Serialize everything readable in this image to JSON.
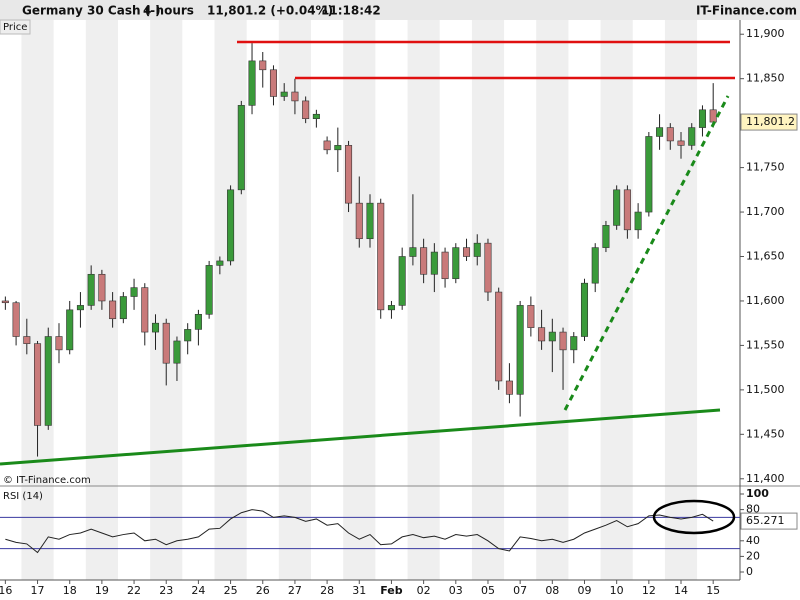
{
  "header": {
    "instrument": "Germany 30 Cash (-)",
    "interval": "4 hours",
    "quote": "11,801.2 (+0.04%)",
    "time": "11:18:42",
    "brand": "IT-Finance.com"
  },
  "chart_data": [
    {
      "type": "candlestick",
      "title": "Price",
      "watermark": "© IT-Finance.com",
      "price_label": "11,801.2",
      "up_color": "#3a9a3a",
      "down_color": "#c97a7a",
      "xlim": [
        -0.5,
        68.5
      ],
      "ylim": [
        11393,
        11916
      ],
      "yticks": [
        {
          "value": 11400,
          "label": "11,400"
        },
        {
          "value": 11450,
          "label": "11,450"
        },
        {
          "value": 11500,
          "label": "11,500"
        },
        {
          "value": 11550,
          "label": "11,550"
        },
        {
          "value": 11600,
          "label": "11,600"
        },
        {
          "value": 11650,
          "label": "11,650"
        },
        {
          "value": 11700,
          "label": "11,700"
        },
        {
          "value": 11750,
          "label": "11,750"
        },
        {
          "value": 11800,
          "label": "11,800"
        },
        {
          "value": 11850,
          "label": "11,850"
        },
        {
          "value": 11900,
          "label": "11,900"
        }
      ],
      "ohlc": [
        [
          11600,
          11605,
          11590,
          11598
        ],
        [
          11598,
          11600,
          11550,
          11560
        ],
        [
          11560,
          11580,
          11540,
          11552
        ],
        [
          11552,
          11555,
          11425,
          11460
        ],
        [
          11460,
          11570,
          11455,
          11560
        ],
        [
          11560,
          11575,
          11530,
          11545
        ],
        [
          11545,
          11600,
          11540,
          11590
        ],
        [
          11590,
          11610,
          11570,
          11595
        ],
        [
          11595,
          11640,
          11590,
          11630
        ],
        [
          11630,
          11635,
          11590,
          11600
        ],
        [
          11600,
          11610,
          11570,
          11580
        ],
        [
          11580,
          11610,
          11575,
          11605
        ],
        [
          11605,
          11625,
          11590,
          11615
        ],
        [
          11615,
          11620,
          11550,
          11565
        ],
        [
          11565,
          11585,
          11545,
          11575
        ],
        [
          11575,
          11580,
          11505,
          11530
        ],
        [
          11530,
          11560,
          11510,
          11555
        ],
        [
          11555,
          11575,
          11540,
          11568
        ],
        [
          11568,
          11590,
          11550,
          11585
        ],
        [
          11585,
          11645,
          11580,
          11640
        ],
        [
          11640,
          11650,
          11630,
          11645
        ],
        [
          11645,
          11730,
          11640,
          11725
        ],
        [
          11725,
          11825,
          11720,
          11820
        ],
        [
          11820,
          11890,
          11810,
          11870
        ],
        [
          11870,
          11880,
          11840,
          11860
        ],
        [
          11860,
          11865,
          11820,
          11830
        ],
        [
          11830,
          11845,
          11825,
          11835
        ],
        [
          11835,
          11850,
          11810,
          11825
        ],
        [
          11825,
          11830,
          11800,
          11805
        ],
        [
          11805,
          11815,
          11795,
          11810
        ],
        [
          11780,
          11785,
          11765,
          11770
        ],
        [
          11770,
          11795,
          11745,
          11775
        ],
        [
          11775,
          11780,
          11700,
          11710
        ],
        [
          11710,
          11740,
          11660,
          11670
        ],
        [
          11670,
          11720,
          11660,
          11710
        ],
        [
          11710,
          11715,
          11580,
          11590
        ],
        [
          11590,
          11600,
          11580,
          11595
        ],
        [
          11595,
          11660,
          11590,
          11650
        ],
        [
          11650,
          11720,
          11640,
          11660
        ],
        [
          11660,
          11670,
          11620,
          11630
        ],
        [
          11630,
          11665,
          11610,
          11655
        ],
        [
          11655,
          11660,
          11615,
          11625
        ],
        [
          11625,
          11665,
          11620,
          11660
        ],
        [
          11660,
          11670,
          11645,
          11650
        ],
        [
          11650,
          11675,
          11640,
          11665
        ],
        [
          11665,
          11670,
          11600,
          11610
        ],
        [
          11610,
          11615,
          11500,
          11510
        ],
        [
          11510,
          11530,
          11485,
          11495
        ],
        [
          11495,
          11600,
          11470,
          11595
        ],
        [
          11595,
          11605,
          11560,
          11570
        ],
        [
          11570,
          11590,
          11545,
          11555
        ],
        [
          11555,
          11580,
          11520,
          11565
        ],
        [
          11565,
          11570,
          11500,
          11545
        ],
        [
          11545,
          11565,
          11530,
          11560
        ],
        [
          11560,
          11625,
          11555,
          11620
        ],
        [
          11620,
          11665,
          11610,
          11660
        ],
        [
          11660,
          11690,
          11655,
          11685
        ],
        [
          11685,
          11730,
          11680,
          11725
        ],
        [
          11725,
          11730,
          11670,
          11680
        ],
        [
          11680,
          11710,
          11670,
          11700
        ],
        [
          11700,
          11790,
          11695,
          11785
        ],
        [
          11785,
          11810,
          11770,
          11795
        ],
        [
          11795,
          11800,
          11770,
          11780
        ],
        [
          11780,
          11790,
          11760,
          11775
        ],
        [
          11775,
          11800,
          11770,
          11795
        ],
        [
          11795,
          11820,
          11785,
          11815
        ],
        [
          11815,
          11845,
          11795,
          11801.2
        ]
      ]
    },
    {
      "type": "line",
      "title": "RSI (14)",
      "color": "#222222",
      "ref_color": "#3a3aa0",
      "xlim": [
        -0.5,
        68.5
      ],
      "ylim": [
        -7.7,
        107.7
      ],
      "yticks": [
        0,
        20,
        40,
        60,
        80,
        100
      ],
      "reference_lines": [
        30,
        70
      ],
      "xticks": [
        {
          "value": 0,
          "label": "16"
        },
        {
          "value": 3,
          "label": "17"
        },
        {
          "value": 6,
          "label": "18"
        },
        {
          "value": 9,
          "label": "19"
        },
        {
          "value": 12,
          "label": "22"
        },
        {
          "value": 15,
          "label": "23"
        },
        {
          "value": 18,
          "label": "24"
        },
        {
          "value": 21,
          "label": "25"
        },
        {
          "value": 24,
          "label": "26"
        },
        {
          "value": 27,
          "label": "27"
        },
        {
          "value": 30,
          "label": "28"
        },
        {
          "value": 33,
          "label": "31"
        },
        {
          "value": 36,
          "label": "Feb"
        },
        {
          "value": 39,
          "label": "02"
        },
        {
          "value": 42,
          "label": "03"
        },
        {
          "value": 45,
          "label": "05"
        },
        {
          "value": 48,
          "label": "07"
        },
        {
          "value": 51,
          "label": "08"
        },
        {
          "value": 54,
          "label": "09"
        },
        {
          "value": 57,
          "label": "10"
        },
        {
          "value": 60,
          "label": "12"
        },
        {
          "value": 63,
          "label": "14"
        },
        {
          "value": 66,
          "label": "15"
        }
      ],
      "values": [
        42,
        38,
        36,
        25,
        45,
        42,
        48,
        50,
        55,
        50,
        45,
        48,
        50,
        40,
        42,
        35,
        40,
        42,
        45,
        55,
        56,
        68,
        76,
        80,
        78,
        70,
        72,
        70,
        65,
        68,
        60,
        62,
        50,
        42,
        48,
        35,
        36,
        45,
        48,
        44,
        46,
        42,
        48,
        46,
        48,
        40,
        30,
        27,
        45,
        43,
        40,
        42,
        38,
        42,
        50,
        55,
        60,
        66,
        58,
        62,
        72,
        73,
        70,
        68,
        70,
        74,
        65.271
      ]
    }
  ]
}
